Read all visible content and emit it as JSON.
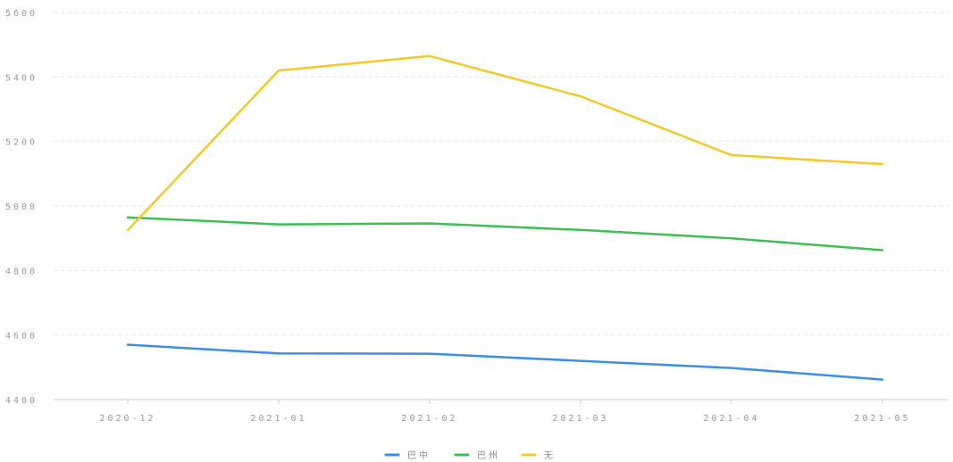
{
  "chart_data": {
    "type": "line",
    "title": "",
    "xlabel": "",
    "ylabel": "",
    "categories": [
      "2020-12",
      "2021-01",
      "2021-02",
      "2021-03",
      "2021-04",
      "2021-05"
    ],
    "ylim": [
      4400,
      5600
    ],
    "yticks": [
      4400,
      4600,
      4800,
      5000,
      5200,
      5400,
      5600
    ],
    "grid": "horizontal dashed",
    "legend": "bottom-center",
    "series": [
      {
        "name": "巴中",
        "color": "#3c8ee8",
        "values": [
          4570,
          4543,
          4542,
          4520,
          4498,
          4462
        ]
      },
      {
        "name": "巴州",
        "color": "#3cbf55",
        "values": [
          4965,
          4943,
          4946,
          4926,
          4900,
          4863
        ]
      },
      {
        "name": "无",
        "color": "#f5c827",
        "values": [
          4925,
          5420,
          5465,
          5340,
          5158,
          5130
        ]
      }
    ]
  }
}
